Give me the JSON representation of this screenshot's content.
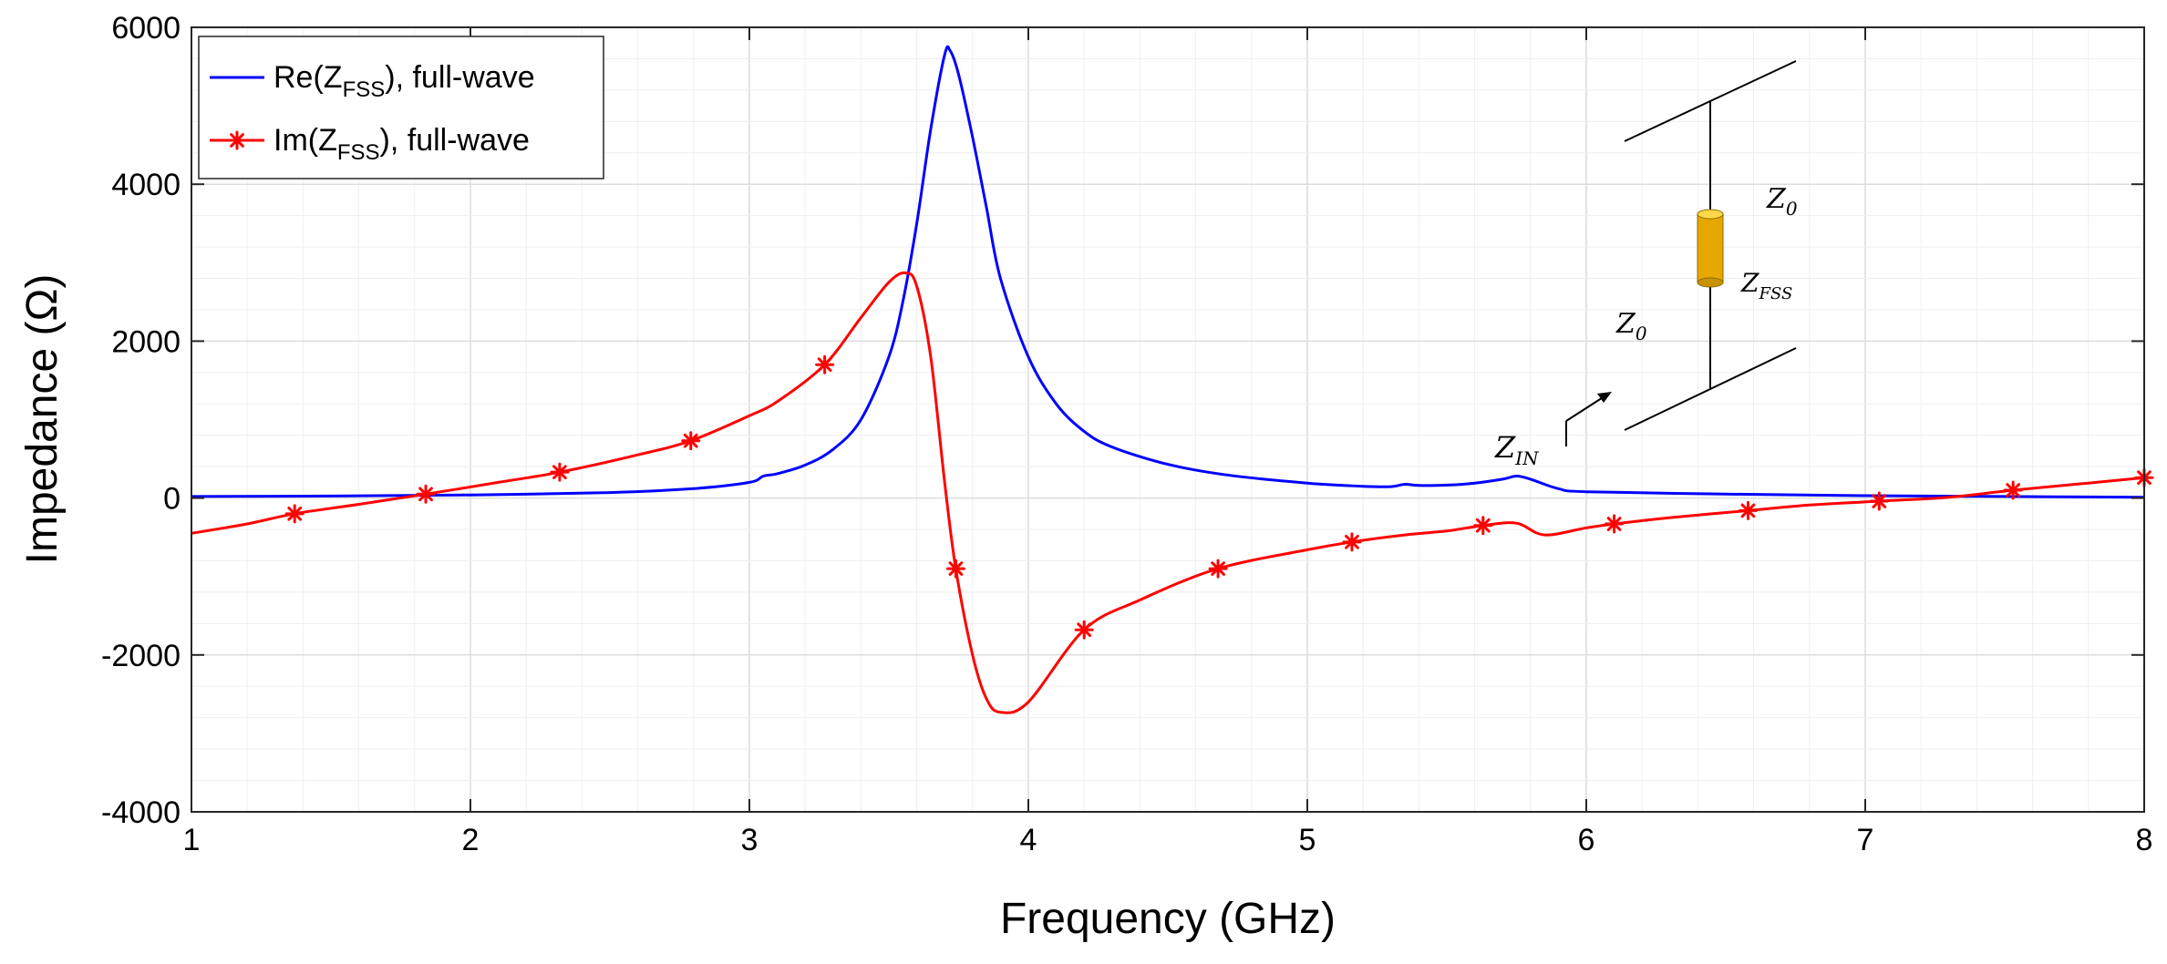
{
  "chart_data": {
    "type": "line",
    "xlabel": "Frequency (GHz)",
    "ylabel": "Impedance (Ω)",
    "xlim": [
      1,
      8
    ],
    "ylim": [
      -4000,
      6000
    ],
    "xticks": [
      1,
      2,
      3,
      4,
      5,
      6,
      7,
      8
    ],
    "xtick_labels": [
      "1",
      "2",
      "3",
      "4",
      "5",
      "6",
      "7",
      "8"
    ],
    "yticks": [
      -4000,
      -2000,
      0,
      2000,
      4000,
      6000
    ],
    "ytick_labels": [
      "-4000",
      "-2000",
      "0",
      "2000",
      "4000",
      "6000"
    ],
    "grid": true,
    "legend_position": "top-left",
    "series": [
      {
        "name": "Re(Z_FSS), full-wave",
        "legend_main": "Re(Z",
        "legend_sub": "FSS",
        "legend_tail": "), full-wave",
        "color": "#0000ff",
        "marker": "none",
        "x": [
          1.0,
          1.5,
          2.0,
          2.5,
          2.8,
          3.0,
          3.05,
          3.1,
          3.2,
          3.3,
          3.4,
          3.5,
          3.55,
          3.6,
          3.65,
          3.7,
          3.72,
          3.75,
          3.8,
          3.85,
          3.9,
          4.0,
          4.1,
          4.2,
          4.3,
          4.5,
          4.7,
          5.0,
          5.2,
          5.3,
          5.35,
          5.4,
          5.5,
          5.6,
          5.7,
          5.75,
          5.8,
          5.9,
          6.0,
          6.5,
          7.0,
          7.5,
          8.0
        ],
        "values": [
          20,
          25,
          40,
          70,
          120,
          200,
          280,
          310,
          420,
          620,
          1000,
          1800,
          2500,
          3500,
          4700,
          5650,
          5700,
          5400,
          4600,
          3700,
          2800,
          1800,
          1200,
          850,
          650,
          430,
          300,
          190,
          150,
          145,
          175,
          160,
          165,
          190,
          240,
          280,
          240,
          120,
          80,
          50,
          30,
          20,
          10
        ]
      },
      {
        "name": "Im(Z_FSS), full-wave",
        "legend_main": "Im(Z",
        "legend_sub": "FSS",
        "legend_tail": "), full-wave",
        "color": "#ff0000",
        "marker": "asterisk",
        "x": [
          1.0,
          1.2,
          1.37,
          1.6,
          1.84,
          2.1,
          2.32,
          2.6,
          2.79,
          3.0,
          3.1,
          3.27,
          3.4,
          3.5,
          3.56,
          3.6,
          3.65,
          3.7,
          3.74,
          3.8,
          3.85,
          3.9,
          4.0,
          4.2,
          4.4,
          4.68,
          5.0,
          5.16,
          5.35,
          5.5,
          5.63,
          5.75,
          5.85,
          6.0,
          6.1,
          6.3,
          6.58,
          6.8,
          7.05,
          7.3,
          7.53,
          7.8,
          8.0
        ],
        "values": [
          -450,
          -330,
          -200,
          -80,
          50,
          200,
          330,
          550,
          730,
          1050,
          1230,
          1700,
          2300,
          2750,
          2870,
          2700,
          1800,
          200,
          -900,
          -2000,
          -2560,
          -2730,
          -2600,
          -1680,
          -1300,
          -900,
          -660,
          -560,
          -470,
          -420,
          -350,
          -320,
          -470,
          -380,
          -330,
          -250,
          -160,
          -90,
          -40,
          10,
          100,
          190,
          260
        ],
        "marker_x": [
          1.37,
          1.84,
          2.32,
          2.79,
          3.27,
          3.74,
          4.2,
          4.68,
          5.16,
          5.63,
          6.1,
          6.58,
          7.05,
          7.53,
          8.0
        ],
        "marker_values": [
          -200,
          50,
          330,
          730,
          1700,
          -900,
          -1680,
          -900,
          -560,
          -350,
          -330,
          -160,
          -40,
          100,
          260
        ]
      }
    ],
    "inset": {
      "labels": [
        "Z0 (top)",
        "Z_FSS",
        "Z0 (bottom)",
        "Z_IN"
      ],
      "z0_main": "Z",
      "z0_sub": "0",
      "zfss_main": "Z",
      "zfss_sub": "FSS",
      "zin_main": "Z",
      "zin_sub": "IN",
      "resistor_color": "#f5b800"
    }
  }
}
